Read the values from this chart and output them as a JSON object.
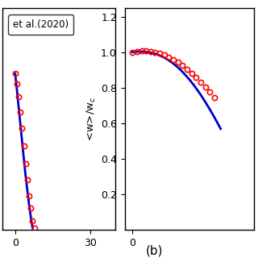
{
  "left_panel": {
    "legend_text": "et al.(2020)",
    "xlim": [
      -5,
      40
    ],
    "ylim": [
      0,
      1.25
    ],
    "xticks": [
      0,
      30
    ],
    "yticks": [],
    "data_blue_x": [
      0.0,
      0.5,
      1.0,
      1.5,
      2.0,
      2.5,
      3.0,
      3.5,
      4.0,
      4.5,
      5.0,
      5.5,
      6.0,
      6.5,
      7.0
    ],
    "data_blue_y": [
      0.88,
      0.82,
      0.75,
      0.68,
      0.61,
      0.54,
      0.47,
      0.4,
      0.33,
      0.27,
      0.21,
      0.15,
      0.1,
      0.05,
      0.01
    ],
    "data_red_x": [
      0.0,
      0.7,
      1.4,
      2.1,
      2.8,
      3.5,
      4.2,
      4.9,
      5.6,
      6.3,
      7.0,
      7.7
    ],
    "data_red_y": [
      0.88,
      0.82,
      0.75,
      0.66,
      0.57,
      0.47,
      0.37,
      0.28,
      0.19,
      0.12,
      0.05,
      0.01
    ]
  },
  "right_panel": {
    "ylabel": "<w>/w_c",
    "xlim": [
      -0.5,
      8
    ],
    "ylim": [
      0,
      1.25
    ],
    "xticks": [
      0
    ],
    "yticks": [
      0.2,
      0.4,
      0.6,
      0.8,
      1.0,
      1.2
    ],
    "data_blue_x": [
      0.0,
      0.2,
      0.4,
      0.6,
      0.8,
      1.0,
      1.2,
      1.4,
      1.6,
      1.8,
      2.0,
      2.2,
      2.4,
      2.6,
      2.8,
      3.0,
      3.2,
      3.4,
      3.6,
      3.8,
      4.0,
      4.2,
      4.4,
      4.6,
      4.8,
      5.0,
      5.2,
      5.4,
      5.6,
      5.8
    ],
    "data_blue_y": [
      1.0,
      1.002,
      1.003,
      1.003,
      1.002,
      1.0,
      0.997,
      0.993,
      0.988,
      0.981,
      0.973,
      0.964,
      0.953,
      0.941,
      0.928,
      0.913,
      0.897,
      0.879,
      0.86,
      0.84,
      0.818,
      0.795,
      0.771,
      0.745,
      0.718,
      0.69,
      0.661,
      0.631,
      0.6,
      0.568
    ],
    "data_red_x": [
      0.0,
      0.3,
      0.6,
      0.9,
      1.2,
      1.5,
      1.8,
      2.1,
      2.4,
      2.7,
      3.0,
      3.3,
      3.6,
      3.9,
      4.2,
      4.5,
      4.8,
      5.1,
      5.4
    ],
    "data_red_y": [
      1.0,
      1.004,
      1.006,
      1.006,
      1.004,
      1.0,
      0.993,
      0.984,
      0.972,
      0.958,
      0.942,
      0.924,
      0.904,
      0.882,
      0.858,
      0.832,
      0.804,
      0.774,
      0.742
    ]
  },
  "label_b": "(b)",
  "blue_color": "#0000cc",
  "red_color": "#ff0000",
  "linewidth": 2.0,
  "marker_size": 4.5
}
